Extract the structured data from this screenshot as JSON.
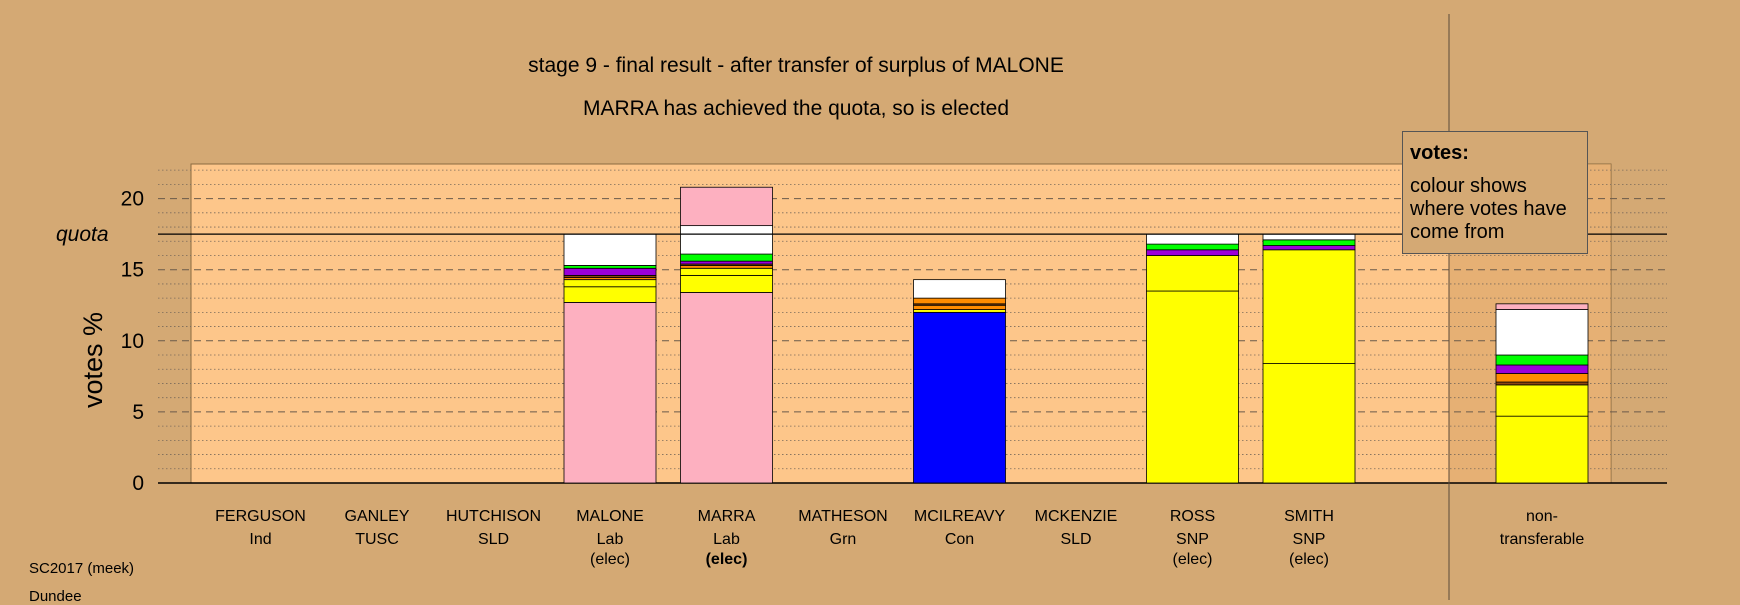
{
  "header": {
    "title": "stage 9 - final result - after transfer of surplus of MALONE",
    "subtitle": "MARRA has achieved the quota, so is elected"
  },
  "legend": {
    "title": "votes:",
    "body": "colour shows where votes have come from"
  },
  "footer": {
    "line1": "SC2017 (meek)",
    "line2": "Dundee"
  },
  "chart_data": {
    "type": "bar",
    "stacked": true,
    "ylabel": "votes %",
    "ylim": [
      0,
      22.5
    ],
    "yticks": [
      "0",
      "5",
      "10",
      "15",
      "20"
    ],
    "grid": true,
    "quota": 17.5,
    "quota_label": "quota",
    "colors": {
      "background": "#d4a974",
      "plot_area": "#fdc68a",
      "Lab": "#fdb0c0",
      "Con": "#0000ff",
      "SNP": "#ffff00",
      "Grn": "#00ff00",
      "SLD": "#ff8c00",
      "TUSC": "#9b00d9",
      "Ind": "#8b4513",
      "transferred": "#ffffff"
    },
    "candidates": [
      {
        "name": "FERGUSON",
        "party": "Ind",
        "status": "",
        "segments": []
      },
      {
        "name": "GANLEY",
        "party": "TUSC",
        "status": "",
        "segments": []
      },
      {
        "name": "HUTCHISON",
        "party": "SLD",
        "status": "",
        "segments": []
      },
      {
        "name": "MALONE",
        "party": "Lab",
        "status": "(elec)",
        "segments": [
          {
            "color": "#fdb0c0",
            "value": 12.7
          },
          {
            "color": "#ffff00",
            "value": 1.1
          },
          {
            "color": "#ffff00",
            "value": 0.5
          },
          {
            "color": "#ff8c00",
            "value": 0.15
          },
          {
            "color": "#8b4513",
            "value": 0.15
          },
          {
            "color": "#9b00d9",
            "value": 0.5
          },
          {
            "color": "#00ff00",
            "value": 0.2
          },
          {
            "color": "#ffffff",
            "value": 2.2
          }
        ]
      },
      {
        "name": "MARRA",
        "party": "Lab",
        "status": "(elec)",
        "segments": [
          {
            "color": "#fdb0c0",
            "value": 13.4
          },
          {
            "color": "#ffff00",
            "value": 1.2
          },
          {
            "color": "#ffff00",
            "value": 0.5
          },
          {
            "color": "#ff8c00",
            "value": 0.2
          },
          {
            "color": "#8b4513",
            "value": 0.1
          },
          {
            "color": "#9b00d9",
            "value": 0.2
          },
          {
            "color": "#00ff00",
            "value": 0.5
          },
          {
            "color": "#ffffff",
            "value": 2.0
          },
          {
            "color": "#fdb0c0",
            "value": 2.7
          }
        ]
      },
      {
        "name": "MATHESON",
        "party": "Grn",
        "status": "",
        "segments": []
      },
      {
        "name": "MCILREAVY",
        "party": "Con",
        "status": "",
        "segments": [
          {
            "color": "#0000ff",
            "value": 12.0
          },
          {
            "color": "#ffff00",
            "value": 0.2
          },
          {
            "color": "#ff8c00",
            "value": 0.3
          },
          {
            "color": "#8b4513",
            "value": 0.1
          },
          {
            "color": "#ff8c00",
            "value": 0.4
          },
          {
            "color": "#ffffff",
            "value": 1.3
          }
        ]
      },
      {
        "name": "MCKENZIE",
        "party": "SLD",
        "status": "",
        "segments": []
      },
      {
        "name": "ROSS",
        "party": "SNP",
        "status": "(elec)",
        "segments": [
          {
            "color": "#ffff00",
            "value": 13.5
          },
          {
            "color": "#ffff00",
            "value": 2.5
          },
          {
            "color": "#9b00d9",
            "value": 0.4
          },
          {
            "color": "#00ff00",
            "value": 0.4
          },
          {
            "color": "#ffffff",
            "value": 0.7
          }
        ]
      },
      {
        "name": "SMITH",
        "party": "SNP",
        "status": "(elec)",
        "segments": [
          {
            "color": "#ffff00",
            "value": 8.4
          },
          {
            "color": "#ffff00",
            "value": 8.0
          },
          {
            "color": "#9b00d9",
            "value": 0.3
          },
          {
            "color": "#00ff00",
            "value": 0.4
          },
          {
            "color": "#ffffff",
            "value": 0.4
          }
        ]
      },
      {
        "name": "non-",
        "party": "transferable",
        "status": "",
        "segments": [
          {
            "color": "#ffff00",
            "value": 4.7
          },
          {
            "color": "#ffff00",
            "value": 2.2
          },
          {
            "color": "#8b4513",
            "value": 0.2
          },
          {
            "color": "#ff8c00",
            "value": 0.6
          },
          {
            "color": "#9b00d9",
            "value": 0.6
          },
          {
            "color": "#00ff00",
            "value": 0.7
          },
          {
            "color": "#ffffff",
            "value": 3.2
          },
          {
            "color": "#fdb0c0",
            "value": 0.4
          }
        ]
      }
    ]
  }
}
